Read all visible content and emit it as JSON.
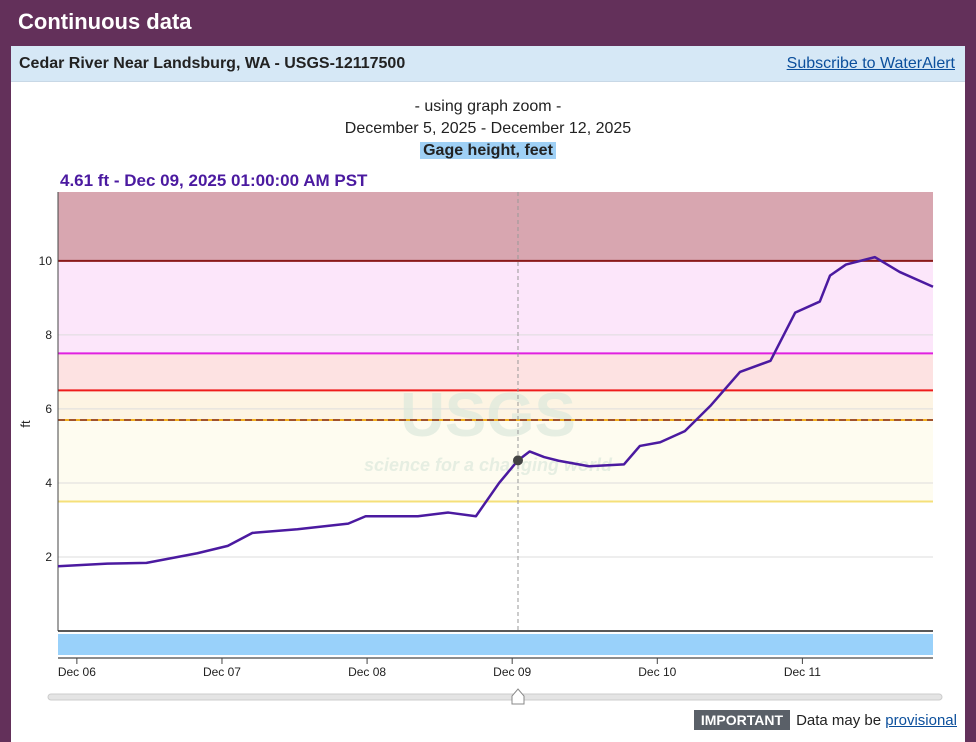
{
  "header": {
    "title": "Continuous data"
  },
  "site": {
    "name": "Cedar River Near Landsburg, WA - USGS-12117500",
    "subscribe_link": "Subscribe to WaterAlert"
  },
  "graph": {
    "zoom_note": "- using graph zoom -",
    "date_range": "December 5, 2025 - December 12, 2025",
    "parameter": "Gage height, feet",
    "hover_readout": "4.61 ft - Dec 09, 2025 01:00:00 AM PST",
    "watermark": "USGS",
    "watermark_tagline": "science for a changing world"
  },
  "footer": {
    "badge": "IMPORTANT",
    "text": "Data may be ",
    "link": "provisional"
  },
  "colors": {
    "line": "#4b1aa0",
    "accent": "#63305a"
  },
  "chart_data": {
    "type": "line",
    "title": "Gage height, feet",
    "xlabel": "",
    "ylabel": "ft",
    "x_units": "days since Dec 06 00:00",
    "xlim": [
      -0.13,
      5.9
    ],
    "ylim": [
      0,
      11.86
    ],
    "yticks": [
      2,
      4,
      6,
      8,
      10
    ],
    "xticks": [
      {
        "x": 0,
        "label": "Dec 06"
      },
      {
        "x": 1,
        "label": "Dec 07"
      },
      {
        "x": 2,
        "label": "Dec 08"
      },
      {
        "x": 3,
        "label": "Dec 09"
      },
      {
        "x": 4,
        "label": "Dec 10"
      },
      {
        "x": 5,
        "label": "Dec 11"
      }
    ],
    "thresholds": [
      {
        "value": 10,
        "color": "#8b1a1a",
        "band_above": "#d8a6b0",
        "dashed": false
      },
      {
        "value": 7.5,
        "color": "#e020e0",
        "band_above": "#fce6fa",
        "dashed": false
      },
      {
        "value": 6.5,
        "color": "#ee1c1c",
        "band_above": "#fde2e2",
        "dashed": false
      },
      {
        "value": 5.7,
        "color": "#a0522d",
        "band_above": "#fdf4e3",
        "dashed": true
      },
      {
        "value": 3.5,
        "color": "#f5e07a",
        "band_above": "#fefcf0",
        "dashed": false
      }
    ],
    "hover": {
      "x": 3.04,
      "y": 4.61
    },
    "series": [
      {
        "name": "Gage height",
        "x": [
          -0.13,
          0.21,
          0.48,
          0.83,
          1.04,
          1.21,
          1.52,
          1.87,
          1.99,
          2.35,
          2.56,
          2.75,
          2.91,
          3.04,
          3.12,
          3.22,
          3.32,
          3.53,
          3.77,
          3.88,
          4.02,
          4.19,
          4.37,
          4.57,
          4.78,
          4.95,
          5.12,
          5.19,
          5.3,
          5.5,
          5.67,
          5.9
        ],
        "y": [
          1.75,
          1.82,
          1.84,
          2.1,
          2.3,
          2.65,
          2.75,
          2.9,
          3.1,
          3.1,
          3.2,
          3.1,
          4.0,
          4.61,
          4.85,
          4.7,
          4.6,
          4.45,
          4.5,
          5.0,
          5.1,
          5.4,
          6.1,
          7.0,
          7.3,
          8.6,
          8.9,
          9.6,
          9.9,
          10.1,
          9.7,
          9.3
        ]
      }
    ]
  }
}
